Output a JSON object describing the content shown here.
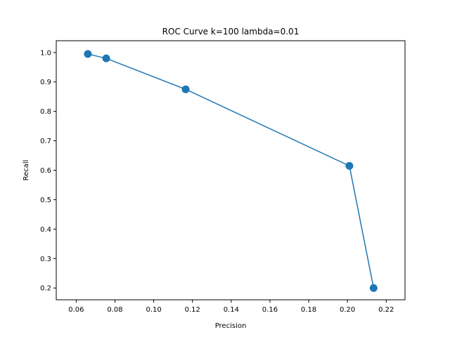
{
  "chart_data": {
    "type": "line",
    "title": "ROC Curve k=100 lambda=0.01",
    "xlabel": "Precision",
    "ylabel": "Recall",
    "xlim": [
      0.0497,
      0.2297
    ],
    "ylim": [
      0.16,
      1.04
    ],
    "xticks": [
      0.06,
      0.08,
      0.1,
      0.12,
      0.14,
      0.16,
      0.18,
      0.2,
      0.22
    ],
    "xtick_labels": [
      "0.06",
      "0.08",
      "0.10",
      "0.12",
      "0.14",
      "0.16",
      "0.18",
      "0.20",
      "0.22"
    ],
    "yticks": [
      0.2,
      0.3,
      0.4,
      0.5,
      0.6,
      0.7,
      0.8,
      0.9,
      1.0
    ],
    "ytick_labels": [
      "0.2",
      "0.3",
      "0.4",
      "0.5",
      "0.6",
      "0.7",
      "0.8",
      "0.9",
      "1.0"
    ],
    "grid": false,
    "series": [
      {
        "color": "#1f77b4",
        "marker": "circle",
        "x": [
          0.066,
          0.0755,
          0.1165,
          0.201,
          0.2135
        ],
        "y": [
          0.995,
          0.98,
          0.875,
          0.615,
          0.2
        ]
      }
    ]
  }
}
